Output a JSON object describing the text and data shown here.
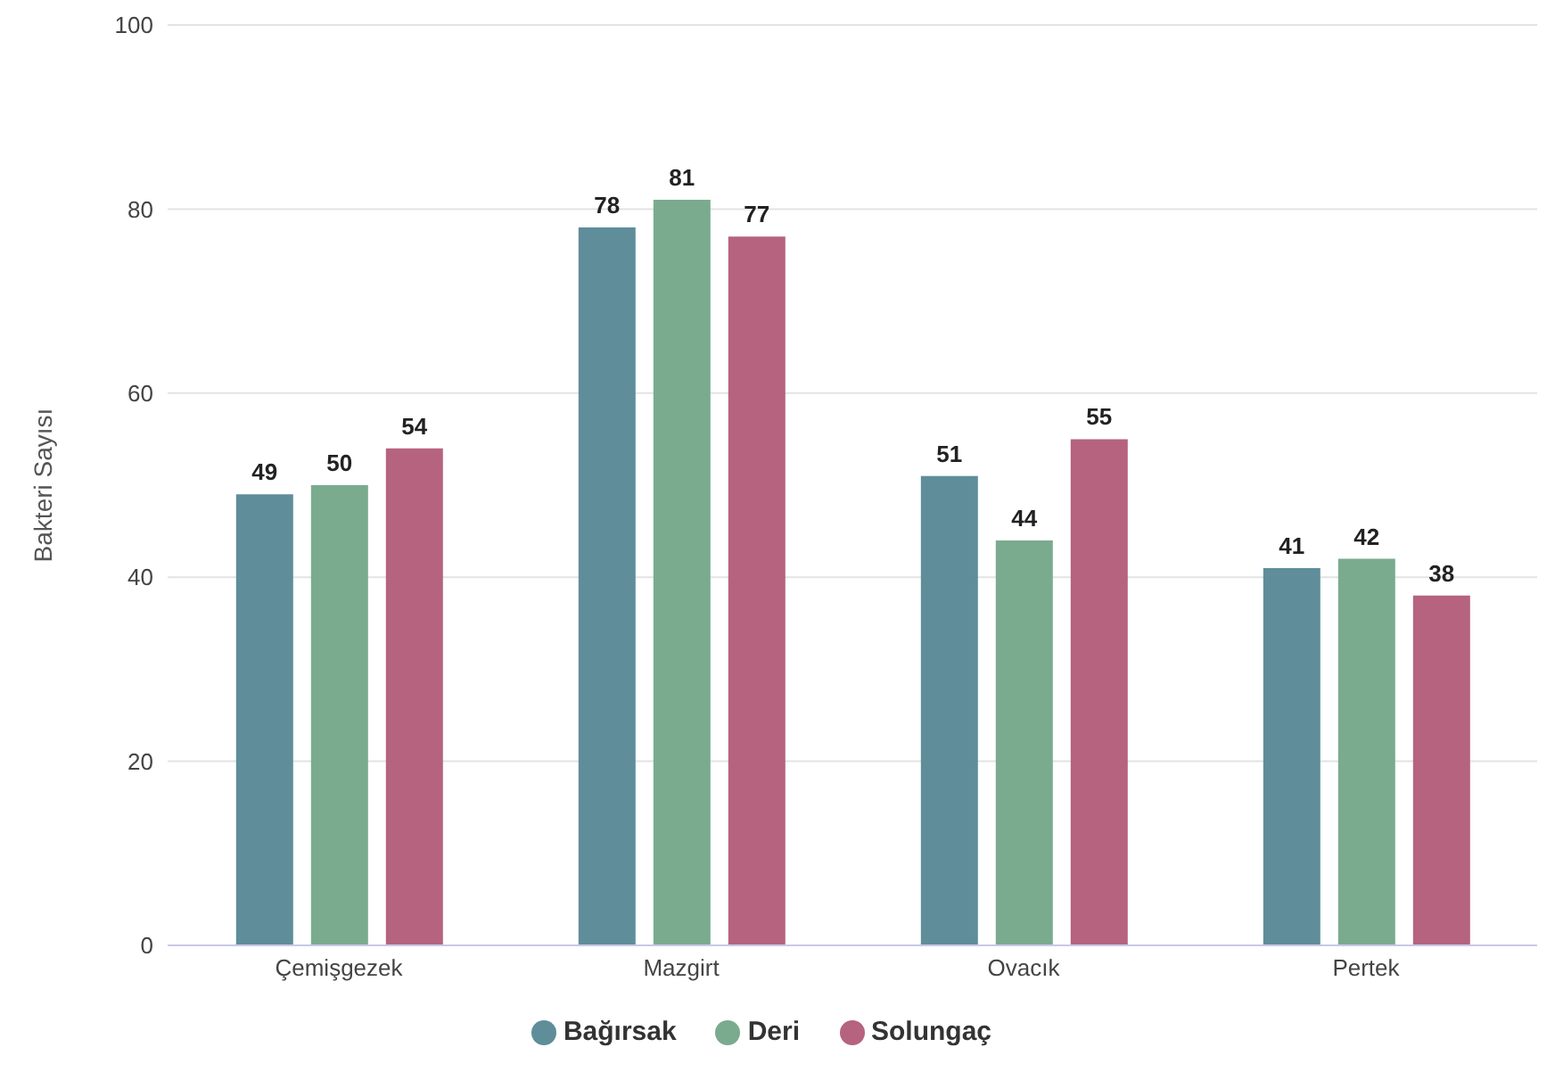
{
  "chart_data": {
    "type": "bar",
    "ylabel": "Bakteri Sayısı",
    "categories": [
      "Çemişgezek",
      "Mazgirt",
      "Ovacık",
      "Pertek"
    ],
    "series": [
      {
        "name": "Bağırsak",
        "color": "#5f8d9a",
        "values": [
          49,
          78,
          51,
          41
        ]
      },
      {
        "name": "Deri",
        "color": "#7aab8e",
        "values": [
          50,
          81,
          44,
          42
        ]
      },
      {
        "name": "Solungaç",
        "color": "#b5637f",
        "values": [
          54,
          77,
          55,
          38
        ]
      }
    ],
    "ylim": [
      0,
      100
    ],
    "yticks": [
      0,
      20,
      40,
      60,
      80,
      100
    ],
    "grid": "y",
    "legend": "bottom",
    "data_labels": true
  }
}
